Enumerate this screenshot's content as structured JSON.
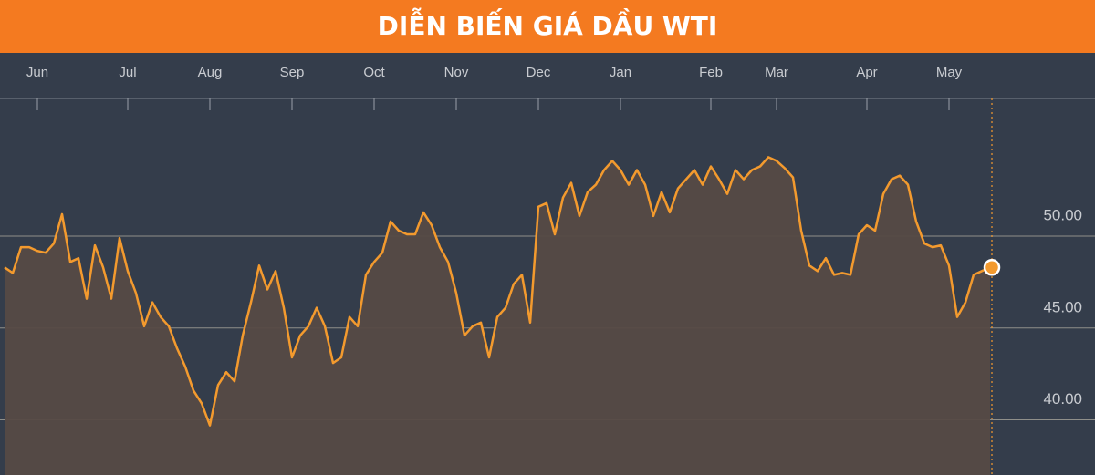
{
  "chart_data": {
    "type": "line",
    "title": "DIỄN BIẾN GIÁ DẦU WTI",
    "categories": [
      null,
      null,
      null,
      null,
      "Jun",
      null,
      null,
      null,
      null,
      null,
      null,
      null,
      null,
      null,
      null,
      "Jul",
      null,
      null,
      null,
      null,
      null,
      null,
      null,
      null,
      null,
      "Aug",
      null,
      null,
      null,
      null,
      null,
      null,
      null,
      null,
      null,
      "Sep",
      null,
      null,
      null,
      null,
      null,
      null,
      null,
      null,
      null,
      "Oct",
      null,
      null,
      null,
      null,
      null,
      null,
      null,
      null,
      null,
      "Nov",
      null,
      null,
      null,
      null,
      null,
      null,
      null,
      null,
      null,
      "Dec",
      null,
      null,
      null,
      null,
      null,
      null,
      null,
      null,
      null,
      "Jan",
      null,
      null,
      null,
      null,
      null,
      null,
      null,
      null,
      null,
      null,
      "Feb",
      null,
      null,
      null,
      null,
      null,
      null,
      null,
      "Mar",
      null,
      null,
      null,
      null,
      null,
      null,
      null,
      null,
      null,
      null,
      "Apr",
      null,
      null,
      null,
      null,
      null,
      null,
      null,
      null,
      null,
      "May",
      null,
      null,
      null,
      null,
      null
    ],
    "values": [
      48.3,
      48.0,
      49.4,
      49.4,
      49.2,
      49.1,
      49.6,
      51.2,
      48.6,
      48.8,
      46.6,
      49.5,
      48.3,
      46.6,
      49.9,
      48.1,
      46.9,
      45.1,
      46.4,
      45.6,
      45.1,
      43.9,
      42.9,
      41.6,
      40.9,
      39.7,
      41.9,
      42.6,
      42.1,
      44.6,
      46.4,
      48.4,
      47.1,
      48.1,
      46.1,
      43.4,
      44.6,
      45.1,
      46.1,
      45.1,
      43.1,
      43.4,
      45.6,
      45.1,
      47.9,
      48.6,
      49.1,
      50.8,
      50.3,
      50.1,
      50.1,
      51.3,
      50.6,
      49.4,
      48.6,
      46.9,
      44.6,
      45.1,
      45.3,
      43.4,
      45.6,
      46.1,
      47.4,
      47.9,
      45.3,
      51.6,
      51.8,
      50.1,
      52.1,
      52.9,
      51.1,
      52.4,
      52.8,
      53.6,
      54.1,
      53.6,
      52.8,
      53.6,
      52.8,
      51.1,
      52.4,
      51.3,
      52.6,
      53.1,
      53.6,
      52.8,
      53.8,
      53.1,
      52.3,
      53.6,
      53.1,
      53.6,
      53.8,
      54.3,
      54.1,
      53.7,
      53.2,
      50.3,
      48.4,
      48.1,
      48.8,
      47.9,
      48.0,
      47.9,
      50.1,
      50.6,
      50.3,
      52.3,
      53.1,
      53.3,
      52.8,
      50.8,
      49.6,
      49.4,
      49.5,
      48.4,
      45.6,
      46.4,
      47.9,
      48.1,
      48.3
    ],
    "color": "#f39a2e",
    "ylim": [
      37,
      57
    ],
    "yticks": [
      {
        "value": 40,
        "label": "40.00"
      },
      {
        "value": 45,
        "label": "45.00"
      },
      {
        "value": 50,
        "label": "50.00"
      }
    ],
    "grid": true
  }
}
